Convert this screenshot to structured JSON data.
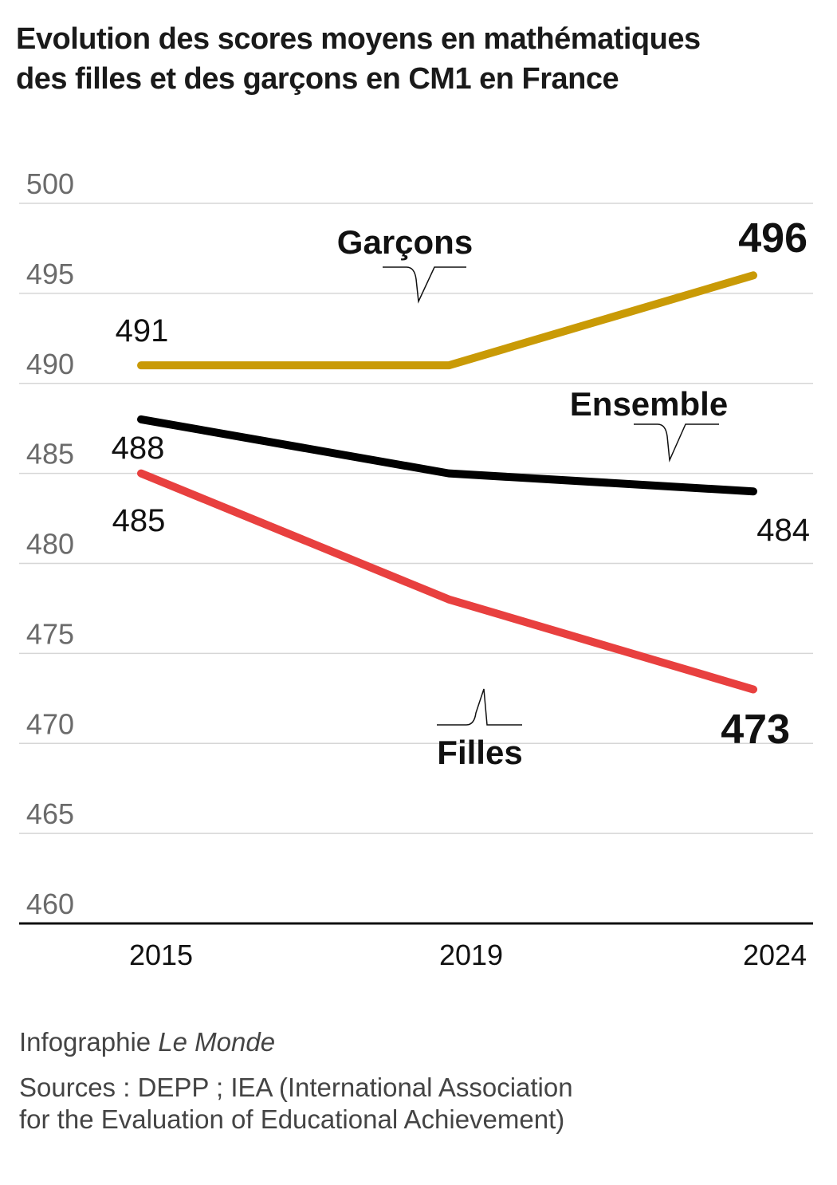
{
  "title_line1": "Evolution des scores moyens en mathématiques",
  "title_line2": "des filles et des garçons en CM1 en France",
  "chart_data": {
    "type": "line",
    "title": "Evolution des scores moyens en mathématiques des filles et des garçons en CM1 en France",
    "categories": [
      "2015",
      "2019",
      "2024"
    ],
    "xlabel": "",
    "ylabel": "",
    "ylim": [
      460,
      500
    ],
    "yticks": [
      500,
      495,
      490,
      485,
      480,
      475,
      470,
      465,
      460
    ],
    "grid": true,
    "series": [
      {
        "name": "Garçons",
        "values": [
          491,
          491,
          496
        ],
        "color": "#c99a06",
        "labels": {
          "start": "491",
          "end": "496"
        }
      },
      {
        "name": "Ensemble",
        "values": [
          488,
          485,
          484
        ],
        "color": "#000000",
        "labels": {
          "start": "488",
          "end": "484"
        }
      },
      {
        "name": "Filles",
        "values": [
          485,
          478,
          473
        ],
        "color": "#e8403f",
        "labels": {
          "start": "485",
          "end": "473"
        }
      }
    ]
  },
  "credit_prefix": "Infographie ",
  "credit_brand": "Le Monde",
  "sources_line1": "Sources : DEPP ; IEA (International Association",
  "sources_line2": "for the Evaluation of Educational Achievement)"
}
